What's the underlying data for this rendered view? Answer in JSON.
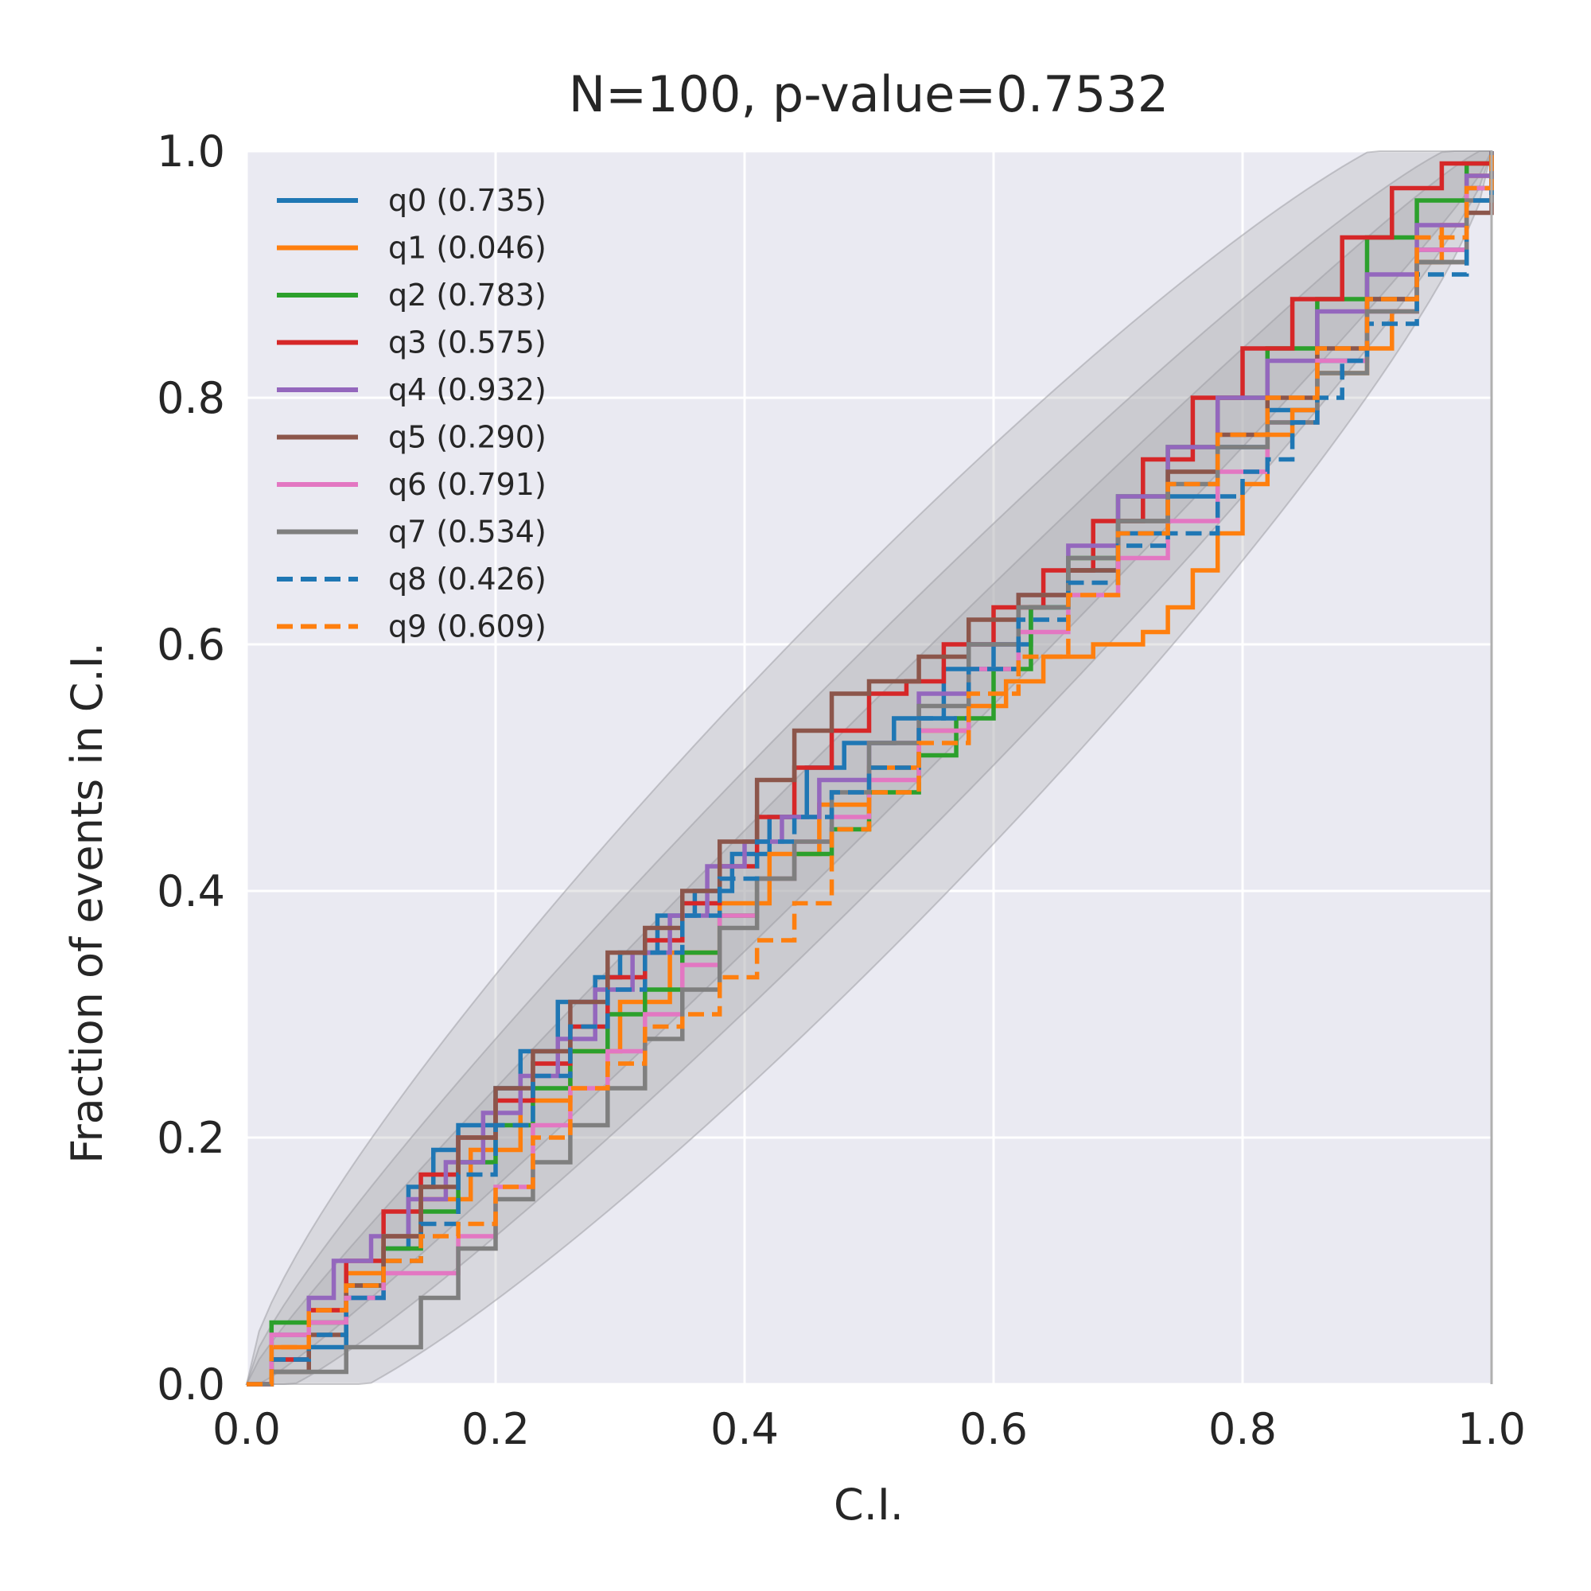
{
  "chart_data": {
    "type": "line",
    "title": "N=100, p-value=0.7532",
    "xlabel": "C.I.",
    "ylabel": "Fraction of events in C.I.",
    "xlim": [
      0,
      1
    ],
    "ylim": [
      0,
      1
    ],
    "xticks": [
      "0.0",
      "0.2",
      "0.4",
      "0.6",
      "0.8",
      "1.0"
    ],
    "yticks": [
      "0.0",
      "0.2",
      "0.4",
      "0.6",
      "0.8",
      "1.0"
    ],
    "grid": true,
    "legend_position": "top-left",
    "background_color": "#eaeaf2",
    "band_color": "#a8a8ae",
    "series": [
      {
        "name": "q0 (0.735)",
        "color": "#1f77b4",
        "dash": "solid",
        "x": [
          0,
          0.02,
          0.05,
          0.08,
          0.11,
          0.13,
          0.15,
          0.17,
          0.2,
          0.22,
          0.25,
          0.28,
          0.3,
          0.33,
          0.36,
          0.39,
          0.42,
          0.45,
          0.48,
          0.52,
          0.56,
          0.6,
          0.63,
          0.66,
          0.7,
          0.74,
          0.78,
          0.82,
          0.86,
          0.9,
          0.94,
          0.98,
          1.0
        ],
        "y": [
          0,
          0.02,
          0.03,
          0.07,
          0.11,
          0.16,
          0.19,
          0.21,
          0.24,
          0.27,
          0.31,
          0.33,
          0.35,
          0.38,
          0.4,
          0.43,
          0.46,
          0.5,
          0.52,
          0.54,
          0.58,
          0.6,
          0.63,
          0.66,
          0.69,
          0.72,
          0.76,
          0.79,
          0.83,
          0.88,
          0.92,
          0.97,
          1.0
        ]
      },
      {
        "name": "q1 (0.046)",
        "color": "#ff7f0e",
        "dash": "solid",
        "x": [
          0,
          0.02,
          0.05,
          0.08,
          0.11,
          0.14,
          0.18,
          0.22,
          0.26,
          0.3,
          0.34,
          0.38,
          0.42,
          0.46,
          0.5,
          0.54,
          0.58,
          0.61,
          0.64,
          0.66,
          0.68,
          0.7,
          0.72,
          0.74,
          0.76,
          0.78,
          0.8,
          0.82,
          0.84,
          0.86,
          0.88,
          0.9,
          0.92,
          0.94,
          0.96,
          0.98,
          1.0
        ],
        "y": [
          0,
          0.03,
          0.06,
          0.09,
          0.12,
          0.15,
          0.19,
          0.23,
          0.27,
          0.31,
          0.35,
          0.39,
          0.43,
          0.47,
          0.5,
          0.53,
          0.55,
          0.57,
          0.59,
          0.59,
          0.6,
          0.6,
          0.61,
          0.63,
          0.66,
          0.69,
          0.73,
          0.77,
          0.79,
          0.82,
          0.82,
          0.84,
          0.87,
          0.91,
          0.94,
          0.98,
          1.0
        ]
      },
      {
        "name": "q2 (0.783)",
        "color": "#2ca02c",
        "dash": "solid",
        "x": [
          0,
          0.02,
          0.05,
          0.08,
          0.11,
          0.14,
          0.17,
          0.2,
          0.23,
          0.26,
          0.29,
          0.32,
          0.35,
          0.38,
          0.41,
          0.44,
          0.47,
          0.5,
          0.54,
          0.57,
          0.6,
          0.63,
          0.66,
          0.7,
          0.74,
          0.78,
          0.82,
          0.86,
          0.9,
          0.94,
          0.98,
          1.0
        ],
        "y": [
          0,
          0.05,
          0.05,
          0.08,
          0.11,
          0.14,
          0.18,
          0.21,
          0.24,
          0.27,
          0.3,
          0.32,
          0.35,
          0.38,
          0.41,
          0.43,
          0.45,
          0.48,
          0.51,
          0.54,
          0.58,
          0.63,
          0.67,
          0.72,
          0.76,
          0.8,
          0.84,
          0.88,
          0.93,
          0.96,
          0.99,
          1.0
        ]
      },
      {
        "name": "q3 (0.575)",
        "color": "#d62728",
        "dash": "solid",
        "x": [
          0,
          0.02,
          0.05,
          0.08,
          0.11,
          0.14,
          0.17,
          0.2,
          0.23,
          0.26,
          0.29,
          0.32,
          0.35,
          0.38,
          0.41,
          0.44,
          0.47,
          0.5,
          0.53,
          0.56,
          0.6,
          0.64,
          0.68,
          0.72,
          0.76,
          0.8,
          0.84,
          0.88,
          0.92,
          0.96,
          1.0
        ],
        "y": [
          0,
          0.02,
          0.06,
          0.1,
          0.14,
          0.17,
          0.2,
          0.23,
          0.26,
          0.29,
          0.33,
          0.36,
          0.39,
          0.42,
          0.46,
          0.5,
          0.53,
          0.56,
          0.57,
          0.6,
          0.63,
          0.66,
          0.7,
          0.75,
          0.8,
          0.84,
          0.88,
          0.93,
          0.97,
          0.99,
          1.0
        ]
      },
      {
        "name": "q4 (0.932)",
        "color": "#9467bd",
        "dash": "solid",
        "x": [
          0,
          0.02,
          0.05,
          0.07,
          0.1,
          0.13,
          0.16,
          0.19,
          0.22,
          0.25,
          0.28,
          0.31,
          0.34,
          0.37,
          0.4,
          0.43,
          0.46,
          0.5,
          0.54,
          0.58,
          0.62,
          0.66,
          0.7,
          0.74,
          0.78,
          0.82,
          0.86,
          0.9,
          0.94,
          0.98,
          1.0
        ],
        "y": [
          0,
          0.04,
          0.07,
          0.1,
          0.12,
          0.15,
          0.18,
          0.22,
          0.25,
          0.28,
          0.32,
          0.35,
          0.38,
          0.42,
          0.44,
          0.46,
          0.49,
          0.52,
          0.56,
          0.6,
          0.64,
          0.68,
          0.72,
          0.76,
          0.8,
          0.83,
          0.87,
          0.9,
          0.94,
          0.98,
          1.0
        ]
      },
      {
        "name": "q5 (0.290)",
        "color": "#8c564b",
        "dash": "solid",
        "x": [
          0,
          0.02,
          0.05,
          0.08,
          0.11,
          0.14,
          0.17,
          0.2,
          0.23,
          0.26,
          0.29,
          0.32,
          0.35,
          0.38,
          0.41,
          0.44,
          0.47,
          0.5,
          0.54,
          0.58,
          0.62,
          0.66,
          0.7,
          0.74,
          0.78,
          0.82,
          0.86,
          0.9,
          0.94,
          0.98,
          1.0
        ],
        "y": [
          0,
          0.01,
          0.04,
          0.08,
          0.12,
          0.16,
          0.2,
          0.24,
          0.27,
          0.31,
          0.35,
          0.37,
          0.4,
          0.44,
          0.49,
          0.53,
          0.56,
          0.57,
          0.59,
          0.62,
          0.64,
          0.66,
          0.7,
          0.74,
          0.77,
          0.8,
          0.84,
          0.88,
          0.91,
          0.95,
          1.0
        ]
      },
      {
        "name": "q6 (0.791)",
        "color": "#e377c2",
        "dash": "solid",
        "x": [
          0,
          0.02,
          0.05,
          0.08,
          0.11,
          0.14,
          0.17,
          0.2,
          0.23,
          0.26,
          0.29,
          0.32,
          0.35,
          0.38,
          0.41,
          0.44,
          0.47,
          0.5,
          0.54,
          0.58,
          0.62,
          0.66,
          0.7,
          0.74,
          0.78,
          0.82,
          0.86,
          0.9,
          0.94,
          0.98,
          1.0
        ],
        "y": [
          0,
          0.04,
          0.05,
          0.07,
          0.09,
          0.09,
          0.12,
          0.16,
          0.21,
          0.24,
          0.27,
          0.3,
          0.34,
          0.38,
          0.41,
          0.44,
          0.46,
          0.49,
          0.53,
          0.58,
          0.61,
          0.64,
          0.67,
          0.7,
          0.74,
          0.78,
          0.83,
          0.87,
          0.92,
          0.97,
          1.0
        ]
      },
      {
        "name": "q7 (0.534)",
        "color": "#7f7f7f",
        "dash": "solid",
        "x": [
          0,
          0.02,
          0.05,
          0.08,
          0.11,
          0.14,
          0.17,
          0.2,
          0.23,
          0.26,
          0.29,
          0.32,
          0.35,
          0.38,
          0.41,
          0.44,
          0.47,
          0.5,
          0.54,
          0.58,
          0.62,
          0.66,
          0.7,
          0.74,
          0.78,
          0.82,
          0.86,
          0.9,
          0.94,
          0.98,
          1.0
        ],
        "y": [
          0,
          0.01,
          0.01,
          0.03,
          0.03,
          0.07,
          0.11,
          0.15,
          0.18,
          0.21,
          0.24,
          0.28,
          0.32,
          0.37,
          0.41,
          0.44,
          0.48,
          0.52,
          0.55,
          0.6,
          0.63,
          0.67,
          0.7,
          0.73,
          0.76,
          0.78,
          0.82,
          0.87,
          0.91,
          0.96,
          1.0
        ]
      },
      {
        "name": "q8 (0.426)",
        "color": "#1f77b4",
        "dash": "dashed",
        "x": [
          0,
          0.02,
          0.05,
          0.08,
          0.11,
          0.14,
          0.17,
          0.2,
          0.23,
          0.26,
          0.29,
          0.32,
          0.35,
          0.38,
          0.41,
          0.44,
          0.47,
          0.5,
          0.54,
          0.58,
          0.62,
          0.66,
          0.7,
          0.74,
          0.78,
          0.8,
          0.82,
          0.84,
          0.86,
          0.88,
          0.9,
          0.94,
          0.98,
          1.0
        ],
        "y": [
          0,
          0.02,
          0.04,
          0.07,
          0.1,
          0.13,
          0.17,
          0.21,
          0.25,
          0.29,
          0.32,
          0.35,
          0.38,
          0.41,
          0.44,
          0.46,
          0.48,
          0.5,
          0.54,
          0.58,
          0.62,
          0.65,
          0.68,
          0.69,
          0.72,
          0.74,
          0.75,
          0.78,
          0.8,
          0.83,
          0.86,
          0.9,
          0.96,
          1.0
        ]
      },
      {
        "name": "q9 (0.609)",
        "color": "#ff7f0e",
        "dash": "dashed",
        "x": [
          0,
          0.02,
          0.05,
          0.08,
          0.11,
          0.14,
          0.17,
          0.2,
          0.23,
          0.26,
          0.29,
          0.32,
          0.35,
          0.38,
          0.41,
          0.44,
          0.47,
          0.5,
          0.54,
          0.58,
          0.62,
          0.66,
          0.7,
          0.74,
          0.78,
          0.82,
          0.86,
          0.9,
          0.94,
          0.98,
          1.0
        ],
        "y": [
          0,
          0.03,
          0.06,
          0.08,
          0.1,
          0.12,
          0.13,
          0.16,
          0.2,
          0.24,
          0.26,
          0.29,
          0.3,
          0.33,
          0.36,
          0.39,
          0.45,
          0.48,
          0.52,
          0.56,
          0.59,
          0.64,
          0.69,
          0.73,
          0.77,
          0.8,
          0.84,
          0.88,
          0.93,
          0.97,
          1.0
        ]
      }
    ]
  }
}
